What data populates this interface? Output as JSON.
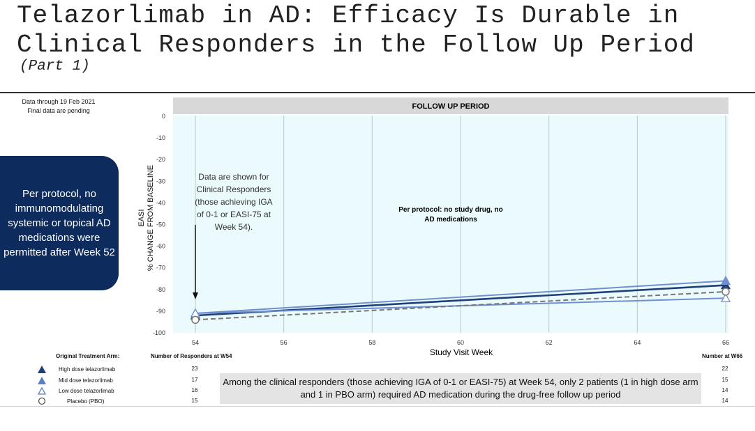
{
  "slide": {
    "title_line1": "Telazorlimab in AD: Efficacy Is Durable in",
    "title_line2": "Clinical Responders in the Follow Up Period",
    "subtitle": "(Part 1)",
    "note_line1": "Data through 19 Feb 2021",
    "note_line2": "Final data are pending",
    "protocol_box": "Per protocol, no immunomodulating systemic or topical AD medications were permitted after Week 52",
    "footnote": "Among the clinical responders (those achieving IGA of 0-1 or EASI-75) at Week 54, only 2 patients (1 in high dose arm and 1 in PBO arm) required AD medication during the drug-free follow up period"
  },
  "table": {
    "arm_header": "Original Treatment Arm:",
    "w54_header": "Number of Responders at W54",
    "w66_header": "Number at W66",
    "rows": [
      {
        "arm": "High dose telazorlimab",
        "w54": "23",
        "w66": "22",
        "symbol": "filled-triangle",
        "color": "#1f3f7a"
      },
      {
        "arm": "Mid dose telazorlimab",
        "w54": "17",
        "w66": "15",
        "symbol": "filled-triangle",
        "color": "#5b7fc7"
      },
      {
        "arm": "Low dose telazorlimab",
        "w54": "16",
        "w66": "14",
        "symbol": "open-triangle",
        "color": "#5b7fc7"
      },
      {
        "arm": "Placebo (PBO)",
        "w54": "15",
        "w66": "14",
        "symbol": "open-circle",
        "color": "#555555"
      }
    ]
  },
  "chart_data": {
    "type": "line",
    "title": "",
    "ylabel_line1": "EASI",
    "ylabel_line2": "% CHANGE FROM BASELINE",
    "xlabel": "Study Visit Week",
    "band_label": "FOLLOW UP PERIOD",
    "annotation_arrow": "Data are shown for Clinical Responders (those achieving IGA of 0-1 or EASI-75 at Week 54).",
    "annotation_center": "Per protocol: no study drug, no AD medications",
    "xlim": [
      54,
      66
    ],
    "ylim": [
      -100,
      0
    ],
    "xticks": [
      "54",
      "56",
      "58",
      "60",
      "62",
      "64",
      "66"
    ],
    "yticks": [
      "0",
      "-10",
      "-20",
      "-30",
      "-40",
      "-50",
      "-60",
      "-70",
      "-80",
      "-90",
      "-100"
    ],
    "grid": true,
    "series": [
      {
        "name": "High dose telazorlimab",
        "color": "#1f3f7a",
        "dash": false,
        "marker": "filled-triangle",
        "x": [
          54,
          66
        ],
        "y": [
          -92,
          -78
        ]
      },
      {
        "name": "Mid dose telazorlimab",
        "color": "#6f8fd0",
        "dash": false,
        "marker": "filled-triangle",
        "x": [
          54,
          66
        ],
        "y": [
          -91,
          -76
        ]
      },
      {
        "name": "Low dose telazorlimab",
        "color": "#6f8fd0",
        "dash": false,
        "marker": "open-triangle",
        "x": [
          54,
          66
        ],
        "y": [
          -91,
          -84
        ]
      },
      {
        "name": "Placebo (PBO)",
        "color": "#777777",
        "dash": true,
        "marker": "open-circle",
        "x": [
          54,
          66
        ],
        "y": [
          -94,
          -81
        ]
      }
    ]
  }
}
